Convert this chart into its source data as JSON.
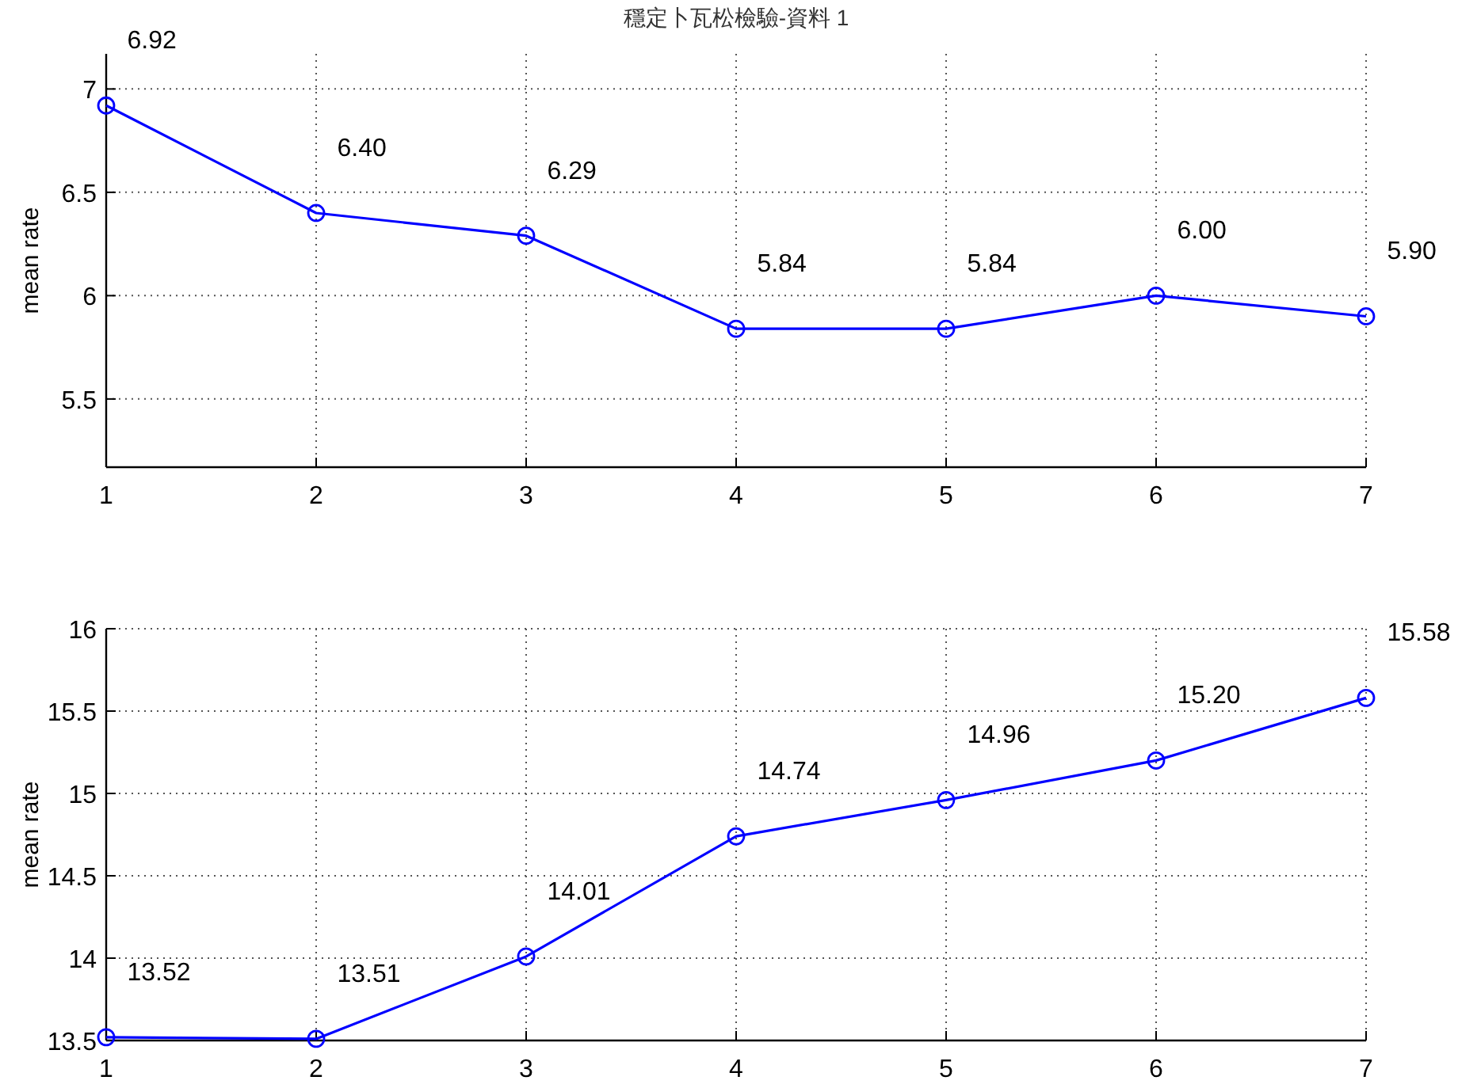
{
  "chart_data": [
    {
      "type": "line",
      "title": "穩定卜瓦松檢驗-資料 1",
      "ylabel": "mean rate",
      "x": [
        1,
        2,
        3,
        4,
        5,
        6,
        7
      ],
      "values": [
        6.92,
        6.4,
        6.29,
        5.84,
        5.84,
        6.0,
        5.9
      ],
      "value_labels": [
        "6.92",
        "6.40",
        "6.29",
        "5.84",
        "5.84",
        "6.00",
        "5.90"
      ],
      "color": "#0000ff",
      "xlim": [
        1,
        7
      ],
      "ylim": [
        5.17,
        7.17
      ],
      "xticks": [
        1,
        2,
        3,
        4,
        5,
        6,
        7
      ],
      "yticks": [
        5.5,
        6,
        6.5,
        7
      ],
      "grid": true,
      "marker": "circle"
    },
    {
      "type": "line",
      "ylabel": "mean rate",
      "x": [
        1,
        2,
        3,
        4,
        5,
        6,
        7
      ],
      "values": [
        13.52,
        13.51,
        14.01,
        14.74,
        14.96,
        15.2,
        15.58
      ],
      "value_labels": [
        "13.52",
        "13.51",
        "14.01",
        "14.74",
        "14.96",
        "15.20",
        "15.58"
      ],
      "color": "#0000ff",
      "xlim": [
        1,
        7
      ],
      "ylim": [
        13.5,
        16
      ],
      "xticks": [
        1,
        2,
        3,
        4,
        5,
        6,
        7
      ],
      "yticks": [
        13.5,
        14,
        14.5,
        15,
        15.5,
        16
      ],
      "grid": true,
      "marker": "circle"
    }
  ]
}
